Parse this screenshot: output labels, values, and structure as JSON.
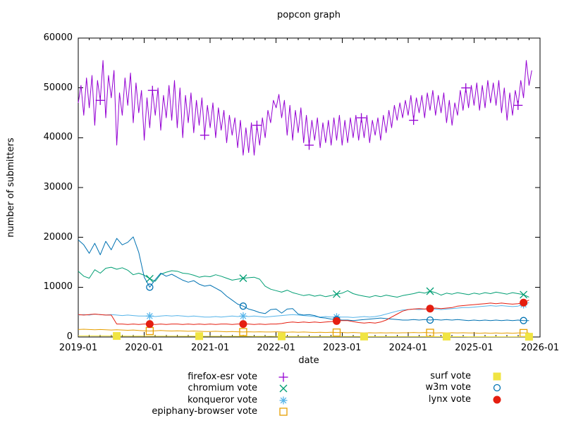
{
  "title": "popcon graph",
  "chart_data": {
    "type": "line",
    "title": "popcon graph",
    "xlabel": "date",
    "ylabel": "number of submitters",
    "x_tick_labels": [
      "2019-01",
      "2020-01",
      "2021-01",
      "2022-01",
      "2023-01",
      "2024-01",
      "2025-01",
      "2026-01"
    ],
    "x_total_months": 84,
    "x_minor_tick_step_months": 2,
    "ylim": [
      0,
      60000
    ],
    "y_ticks": [
      0,
      10000,
      20000,
      30000,
      40000,
      50000,
      60000
    ],
    "grid": false,
    "background": "#ffffff",
    "legend_position": "below-plot-two-columns",
    "series": [
      {
        "id": "firefox-esr",
        "name": "firefox-esr vote",
        "color": "#9400d3",
        "marker": "plus",
        "months_per_point": 0.5,
        "marker_every": 19,
        "marker_offset": 8,
        "values": [
          47000,
          50500,
          44500,
          52000,
          46000,
          52500,
          42500,
          51500,
          47500,
          55500,
          44000,
          52500,
          48000,
          53500,
          38500,
          49000,
          44500,
          52000,
          46500,
          53000,
          43000,
          51000,
          45000,
          49500,
          39500,
          48000,
          42000,
          49500,
          44500,
          50000,
          41500,
          48500,
          44000,
          50500,
          43500,
          51500,
          42000,
          50000,
          40000,
          48500,
          43000,
          49000,
          41000,
          47500,
          42500,
          48000,
          40500,
          46500,
          42000,
          47000,
          40000,
          46000,
          41500,
          45500,
          39000,
          44500,
          40500,
          44000,
          38000,
          43500,
          36500,
          42000,
          37000,
          43000,
          36500,
          42500,
          38500,
          44000,
          40000,
          45500,
          43000,
          47500,
          46000,
          48700,
          44000,
          47500,
          40500,
          46500,
          39500,
          45500,
          41000,
          46000,
          39000,
          44500,
          38500,
          43500,
          39500,
          44000,
          38000,
          43000,
          39000,
          43500,
          38500,
          44000,
          39500,
          44500,
          38500,
          43500,
          39000,
          44000,
          40000,
          44500,
          39500,
          44000,
          40000,
          44500,
          39000,
          43500,
          40500,
          44000,
          39500,
          44500,
          41000,
          45500,
          42000,
          46500,
          43500,
          47000,
          44000,
          47500,
          44500,
          48500,
          43500,
          48000,
          45000,
          48500,
          44000,
          49000,
          45500,
          49500,
          44500,
          48500,
          45000,
          49000,
          43000,
          47500,
          42500,
          47000,
          44500,
          49500,
          45500,
          50000,
          46000,
          50500,
          46500,
          51000,
          45500,
          50500,
          46000,
          51500,
          47000,
          51000,
          46500,
          51500,
          45000,
          50000,
          43500,
          49000,
          44500,
          49500,
          46500,
          51500,
          48000,
          55500,
          50500,
          53500
        ]
      },
      {
        "id": "chromium",
        "name": "chromium vote",
        "color": "#009e73",
        "marker": "cross",
        "months_per_point": 1,
        "marker_every": 17,
        "marker_offset": 13,
        "values": [
          13200,
          12200,
          11800,
          13500,
          12800,
          13800,
          14000,
          13600,
          13900,
          13400,
          12500,
          12800,
          12400,
          11700,
          11200,
          12600,
          13000,
          13300,
          13200,
          12800,
          12700,
          12400,
          12000,
          12200,
          12100,
          12500,
          12200,
          11800,
          11400,
          11600,
          11800,
          11900,
          12000,
          11600,
          10200,
          9600,
          9300,
          9000,
          9400,
          8900,
          8600,
          8300,
          8500,
          8200,
          8400,
          8100,
          8300,
          8600,
          8800,
          9300,
          8700,
          8400,
          8200,
          8000,
          8300,
          8100,
          8400,
          8200,
          8000,
          8300,
          8500,
          8700,
          9000,
          8800,
          9200,
          8900,
          8400,
          8800,
          8600,
          8900,
          8700,
          8500,
          8800,
          8600,
          8900,
          8700,
          9000,
          8800,
          8600,
          8900,
          8700,
          8500,
          8000
        ]
      },
      {
        "id": "konqueror",
        "name": "konqueror vote",
        "color": "#56b4e9",
        "marker": "asterisk",
        "months_per_point": 1,
        "marker_every": 17,
        "marker_offset": 13,
        "values": [
          4400,
          4500,
          4400,
          4600,
          4500,
          4400,
          4500,
          4400,
          4300,
          4400,
          4300,
          4200,
          4200,
          4200,
          4100,
          4200,
          4300,
          4200,
          4300,
          4200,
          4100,
          4200,
          4100,
          4000,
          4000,
          4100,
          4000,
          4100,
          4200,
          4100,
          4200,
          4100,
          4200,
          4100,
          4000,
          4100,
          4200,
          4300,
          4400,
          4500,
          4400,
          4300,
          4200,
          4100,
          4000,
          4100,
          4000,
          4000,
          4000,
          4000,
          3900,
          4000,
          4100,
          4000,
          4100,
          4300,
          4600,
          4900,
          5200,
          5400,
          5500,
          5600,
          5500,
          5600,
          5700,
          5600,
          5500,
          5600,
          5700,
          5800,
          5900,
          5900,
          6000,
          6100,
          6200,
          6300,
          6200,
          6300,
          6200,
          6100,
          6200,
          6500,
          6900
        ]
      },
      {
        "id": "epiphany-browser",
        "name": "epiphany-browser vote",
        "color": "#e69f00",
        "marker": "square-open",
        "months_per_point": 1,
        "marker_every": 17,
        "marker_offset": 13,
        "values": [
          1500,
          1550,
          1500,
          1450,
          1500,
          1450,
          1400,
          1450,
          1400,
          1350,
          1400,
          1300,
          1250,
          1200,
          1250,
          1300,
          1250,
          1200,
          1250,
          1200,
          1150,
          1200,
          1150,
          1100,
          1100,
          1150,
          1100,
          1050,
          1100,
          1050,
          1000,
          1050,
          1000,
          1050,
          1000,
          1000,
          1050,
          1000,
          950,
          1000,
          950,
          1000,
          950,
          900,
          950,
          900,
          950,
          900,
          900,
          850,
          900,
          850,
          800,
          850,
          800,
          850,
          800,
          850,
          800,
          850,
          850,
          900,
          850,
          900,
          850,
          800,
          850,
          800,
          850,
          800,
          850,
          800,
          800,
          750,
          800,
          750,
          800,
          750,
          800,
          750,
          800,
          800,
          800
        ]
      },
      {
        "id": "surf",
        "name": "surf vote",
        "color": "#f0e442",
        "marker": "square-filled",
        "months_per_point": 1,
        "marker_every": 15,
        "marker_offset": 7,
        "values": [
          250,
          230,
          240,
          220,
          230,
          220,
          210,
          200,
          210,
          200,
          190,
          200,
          190,
          180,
          190,
          180,
          170,
          180,
          170,
          160,
          170,
          160,
          170,
          160,
          150,
          160,
          150,
          140,
          150,
          140,
          150,
          140,
          130,
          140,
          130,
          140,
          130,
          120,
          130,
          120,
          130,
          120,
          110,
          120,
          110,
          120,
          110,
          100,
          110,
          100,
          110,
          100,
          90,
          100,
          90,
          100,
          90,
          80,
          90,
          80,
          90,
          80,
          90,
          80,
          70,
          80,
          70,
          80,
          70,
          80,
          70,
          60,
          70,
          60,
          70,
          60,
          70,
          60,
          50,
          60,
          50,
          60,
          50
        ]
      },
      {
        "id": "w3m",
        "name": "w3m vote",
        "color": "#0072b2",
        "marker": "circle-open",
        "months_per_point": 1,
        "marker_every": 17,
        "marker_offset": 13,
        "values": [
          19500,
          18500,
          16800,
          18800,
          16500,
          19200,
          17500,
          19800,
          18500,
          19000,
          20100,
          17000,
          12000,
          10000,
          11500,
          12800,
          12200,
          12600,
          12000,
          11400,
          11000,
          11300,
          10600,
          10200,
          10400,
          9800,
          9200,
          8200,
          7400,
          6600,
          6200,
          5600,
          5300,
          4900,
          4700,
          5500,
          5600,
          4800,
          5600,
          5700,
          4600,
          4400,
          4500,
          4300,
          3900,
          3800,
          3600,
          3500,
          3400,
          3400,
          3300,
          3400,
          3500,
          3600,
          3700,
          3800,
          3700,
          3600,
          3500,
          3400,
          3400,
          3500,
          3400,
          3500,
          3400,
          3500,
          3400,
          3500,
          3400,
          3500,
          3400,
          3300,
          3400,
          3300,
          3400,
          3300,
          3400,
          3300,
          3400,
          3300,
          3400,
          3300,
          3300
        ]
      },
      {
        "id": "lynx",
        "name": "lynx vote",
        "color": "#e51e10",
        "marker": "circle-filled",
        "months_per_point": 1,
        "marker_every": 17,
        "marker_offset": 13,
        "values": [
          4500,
          4400,
          4500,
          4600,
          4500,
          4400,
          4400,
          2600,
          2600,
          2500,
          2600,
          2500,
          2600,
          2600,
          2500,
          2600,
          2500,
          2600,
          2600,
          2500,
          2600,
          2500,
          2600,
          2500,
          2600,
          2500,
          2600,
          2600,
          2500,
          2600,
          2600,
          2600,
          2500,
          2600,
          2500,
          2600,
          2600,
          2700,
          2900,
          3000,
          2900,
          3000,
          2900,
          3000,
          2900,
          3000,
          3100,
          3200,
          3300,
          3300,
          3100,
          2900,
          2800,
          2900,
          2800,
          3000,
          3400,
          4000,
          4600,
          5200,
          5500,
          5600,
          5700,
          5600,
          5700,
          5800,
          5700,
          5800,
          5900,
          6200,
          6300,
          6400,
          6500,
          6600,
          6700,
          6800,
          6700,
          6800,
          6700,
          6600,
          6700,
          6900,
          7400
        ]
      }
    ]
  }
}
